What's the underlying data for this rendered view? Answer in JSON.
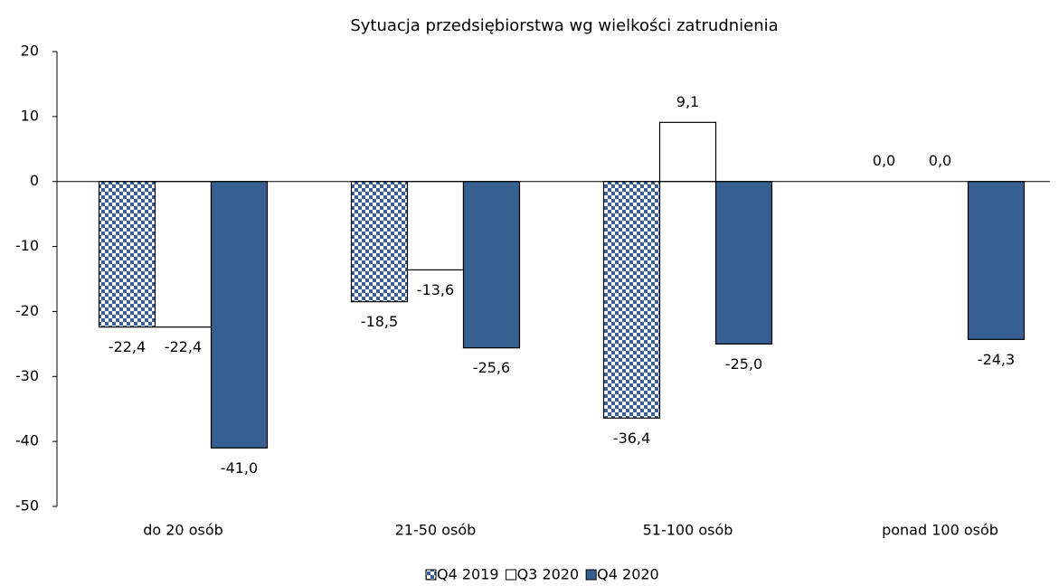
{
  "chart_data": {
    "type": "bar",
    "title": "Sytuacja przedsiębiorstwa wg wielkości zatrudnienia",
    "categories": [
      "do 20 osób",
      "21-50 osób",
      "51-100 osób",
      "ponad 100 osób"
    ],
    "series": [
      {
        "name": "Q4 2019",
        "color": "#3a5f95",
        "pattern": "checker",
        "values": [
          -22.4,
          -18.5,
          -36.4,
          0
        ],
        "value_labels": [
          "-22,4",
          "-18,5",
          "-36,4",
          "0,0"
        ]
      },
      {
        "name": "Q3 2020",
        "color": "#ffffff",
        "values": [
          -22.4,
          -13.6,
          9.1,
          0
        ],
        "value_labels": [
          "-22,4",
          "-13,6",
          "9,1",
          "0,0"
        ]
      },
      {
        "name": "Q4 2020",
        "color": "#376092",
        "values": [
          -41.0,
          -25.6,
          -25.0,
          -24.3
        ],
        "value_labels": [
          "-41,0",
          "-25,6",
          "-25,0",
          "-24,3"
        ]
      }
    ],
    "ylim": [
      -50,
      20
    ],
    "yticks": [
      -50,
      -40,
      -30,
      -20,
      -10,
      0,
      10,
      20
    ],
    "grid": false,
    "legend": "bottom"
  }
}
